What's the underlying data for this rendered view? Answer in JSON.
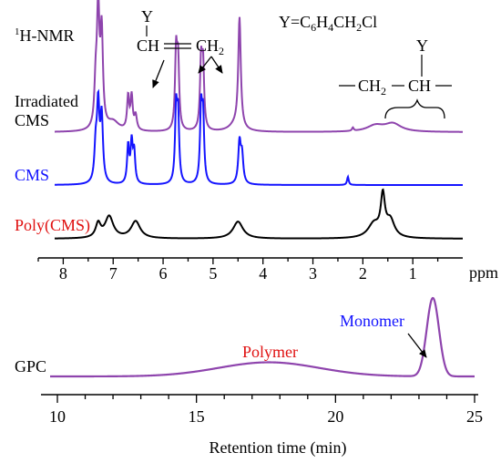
{
  "chart_data": [
    {
      "type": "line",
      "panel": "top",
      "subtype": "stacked-nmr-spectra",
      "x_axis": {
        "label": "ppm",
        "reversed": true,
        "range": [
          8.5,
          0.0
        ],
        "major_ticks": [
          8,
          7,
          6,
          5,
          4,
          3,
          2,
          1
        ],
        "tick_labels": [
          "8",
          "7",
          "6",
          "5",
          "4",
          "3",
          "2",
          "1"
        ]
      },
      "y_axis": {
        "shown": false
      },
      "grid": false,
      "labels": {
        "nmr_prefix": "1",
        "nmr_title": "H-NMR",
        "y_definition": "Y=C6H4CH2Cl",
        "vinyl_y": "Y",
        "vinyl_ch": "CH",
        "vinyl_bond": "=",
        "vinyl_ch2": "CH2",
        "backbone_y": "Y",
        "backbone_ch2": "CH2",
        "backbone_ch": "CH"
      },
      "series": [
        {
          "name": "Irradiated CMS",
          "label_lines": [
            "Irradiated",
            "CMS"
          ],
          "color": "#8e44ad",
          "baseline": 0,
          "peaks": [
            {
              "ppm": 7.3,
              "height": 1.75,
              "width": 0.03
            },
            {
              "ppm": 7.23,
              "height": 1.4,
              "width": 0.03
            },
            {
              "ppm": 7.35,
              "height": 0.6,
              "width": 0.03
            },
            {
              "ppm": 7.0,
              "height": 0.14,
              "width": 0.14
            },
            {
              "ppm": 6.7,
              "height": 0.5,
              "width": 0.025
            },
            {
              "ppm": 6.63,
              "height": 0.5,
              "width": 0.025
            },
            {
              "ppm": 6.55,
              "height": 0.22,
              "width": 0.03
            },
            {
              "ppm": 5.74,
              "height": 1.15,
              "width": 0.025
            },
            {
              "ppm": 5.7,
              "height": 1.0,
              "width": 0.025
            },
            {
              "ppm": 5.24,
              "height": 1.0,
              "width": 0.025
            },
            {
              "ppm": 5.2,
              "height": 0.95,
              "width": 0.025
            },
            {
              "ppm": 4.55,
              "height": 0.1,
              "width": 0.15
            },
            {
              "ppm": 4.47,
              "height": 1.65,
              "width": 0.03
            },
            {
              "ppm": 2.2,
              "height": 0.05,
              "width": 0.02
            },
            {
              "ppm": 1.75,
              "height": 0.09,
              "width": 0.2
            },
            {
              "ppm": 1.4,
              "height": 0.12,
              "width": 0.2
            }
          ]
        },
        {
          "name": "CMS",
          "label_lines": [
            "CMS"
          ],
          "color": "#1414ff",
          "baseline": 0,
          "peaks": [
            {
              "ppm": 7.3,
              "height": 1.1,
              "width": 0.03
            },
            {
              "ppm": 7.23,
              "height": 0.95,
              "width": 0.03
            },
            {
              "ppm": 7.35,
              "height": 0.5,
              "width": 0.03
            },
            {
              "ppm": 6.7,
              "height": 0.55,
              "width": 0.025
            },
            {
              "ppm": 6.63,
              "height": 0.58,
              "width": 0.025
            },
            {
              "ppm": 6.58,
              "height": 0.45,
              "width": 0.025
            },
            {
              "ppm": 5.74,
              "height": 1.05,
              "width": 0.025
            },
            {
              "ppm": 5.7,
              "height": 0.95,
              "width": 0.025
            },
            {
              "ppm": 5.24,
              "height": 1.05,
              "width": 0.025
            },
            {
              "ppm": 5.2,
              "height": 0.95,
              "width": 0.025
            },
            {
              "ppm": 4.47,
              "height": 0.6,
              "width": 0.03
            },
            {
              "ppm": 4.42,
              "height": 0.4,
              "width": 0.03
            },
            {
              "ppm": 2.3,
              "height": 0.12,
              "width": 0.02
            }
          ]
        },
        {
          "name": "Poly(CMS)",
          "label_lines": [
            "Poly(CMS)"
          ],
          "color": "#000000",
          "baseline": 0,
          "peaks": [
            {
              "ppm": 7.3,
              "height": 0.18,
              "width": 0.06
            },
            {
              "ppm": 7.08,
              "height": 0.28,
              "width": 0.1
            },
            {
              "ppm": 6.55,
              "height": 0.22,
              "width": 0.11
            },
            {
              "ppm": 4.5,
              "height": 0.22,
              "width": 0.12
            },
            {
              "ppm": 1.78,
              "height": 0.18,
              "width": 0.14
            },
            {
              "ppm": 1.6,
              "height": 0.5,
              "width": 0.05
            },
            {
              "ppm": 1.45,
              "height": 0.22,
              "width": 0.1
            }
          ]
        }
      ]
    },
    {
      "type": "line",
      "panel": "bottom",
      "title": "GPC",
      "x_axis": {
        "label": "Retention time (min)",
        "range": [
          10,
          25
        ],
        "major_ticks": [
          10,
          15,
          20,
          25
        ],
        "tick_labels": [
          "10",
          "15",
          "20",
          "25"
        ],
        "minor_step": 1
      },
      "y_axis": {
        "shown": false
      },
      "grid": false,
      "series": [
        {
          "name": "GPC",
          "color": "#8e44ad",
          "peaks": [
            {
              "center": 17.6,
              "height": 0.18,
              "width": 1.8
            },
            {
              "center": 23.5,
              "height": 1.0,
              "width": 0.22
            }
          ]
        }
      ],
      "annotations": [
        {
          "text": "Polymer",
          "color": "#e01010"
        },
        {
          "text": "Monomer",
          "color": "#1414ff"
        }
      ]
    }
  ]
}
